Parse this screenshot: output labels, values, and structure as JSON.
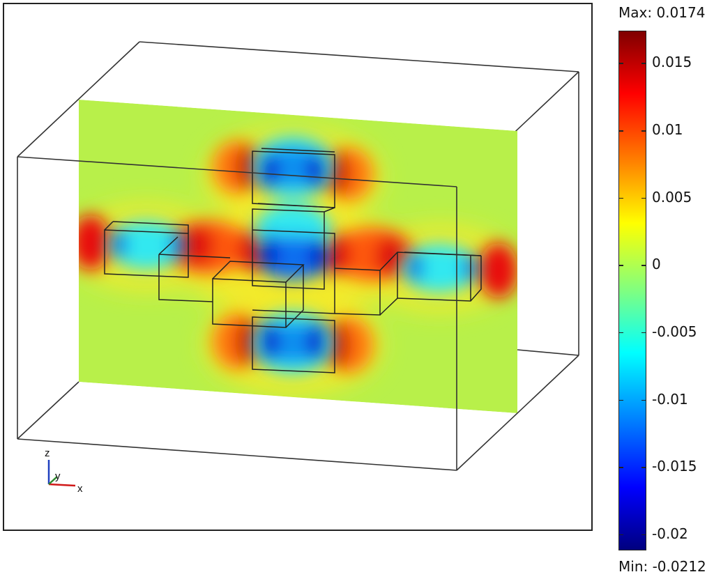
{
  "colorbar": {
    "max_label": "Max: 0.0174",
    "min_label": "Min: -0.0212",
    "max": 0.0174,
    "min": -0.0212,
    "ticks": [
      {
        "value": 0.015,
        "label": "0.015"
      },
      {
        "value": 0.01,
        "label": "0.01"
      },
      {
        "value": 0.005,
        "label": "0.005"
      },
      {
        "value": 0,
        "label": "0"
      },
      {
        "value": -0.005,
        "label": "-0.005"
      },
      {
        "value": -0.01,
        "label": "-0.01"
      },
      {
        "value": -0.015,
        "label": "-0.015"
      },
      {
        "value": -0.02,
        "label": "-0.02"
      }
    ],
    "colormap": "jet"
  },
  "axes_triad": {
    "z_label": "z",
    "y_label": "y",
    "x_label": "x",
    "z_color": "#1f3fbf",
    "y_color": "#2e8b2e",
    "x_color": "#d01818"
  }
}
